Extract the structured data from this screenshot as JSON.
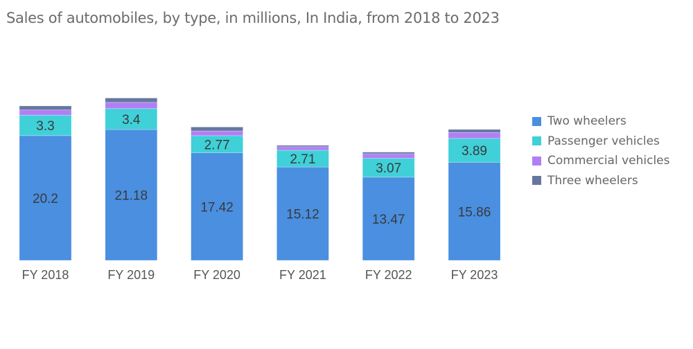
{
  "chart_data": {
    "type": "bar",
    "stacked": true,
    "title": "Sales of automobiles, by type, in millions, In India, from 2018 to 2023",
    "xlabel": "",
    "ylabel": "",
    "categories": [
      "FY 2018",
      "FY 2019",
      "FY 2020",
      "FY 2021",
      "FY 2022",
      "FY 2023"
    ],
    "series": [
      {
        "name": "Two wheelers",
        "color": "#4a8fe0",
        "values": [
          20.2,
          21.18,
          17.42,
          15.12,
          13.47,
          15.86
        ],
        "labeled": true
      },
      {
        "name": "Passenger vehicles",
        "color": "#3fd0d8",
        "values": [
          3.3,
          3.4,
          2.77,
          2.71,
          3.07,
          3.89
        ],
        "labeled": true
      },
      {
        "name": "Commercial vehicles",
        "color": "#b17ff5",
        "values": [
          0.86,
          1.0,
          0.76,
          0.57,
          0.72,
          0.96
        ],
        "labeled": false
      },
      {
        "name": "Three wheelers",
        "color": "#6577a0",
        "values": [
          0.64,
          0.7,
          0.64,
          0.22,
          0.26,
          0.49
        ],
        "labeled": false
      }
    ],
    "ylim": [
      0,
      30
    ],
    "grid": false,
    "y_axis_visible": false,
    "legend": {
      "position": "right"
    }
  }
}
